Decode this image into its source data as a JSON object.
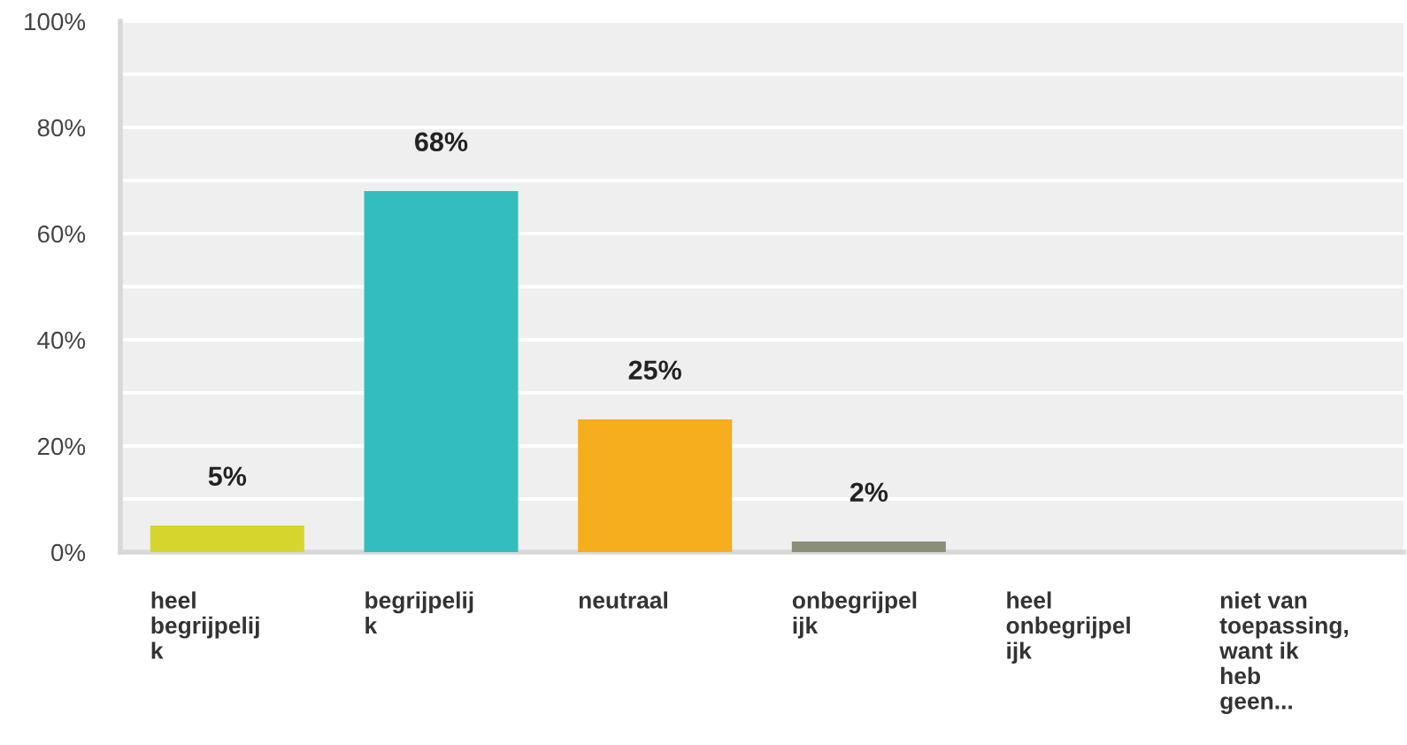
{
  "chart_data": {
    "type": "bar",
    "categories": [
      "heel\nbegrijpelij\nk",
      "begrijpelij\nk",
      "neutraal",
      "onbegrijpel\nijk",
      "heel\nonbegrijpel\nijk",
      "niet van\ntoepassing,\nwant ik\nheb\ngeen..."
    ],
    "values": [
      5,
      68,
      25,
      2,
      0,
      0
    ],
    "colors": [
      "#d4d62d",
      "#33bdbe",
      "#f6ae1f",
      "#8a9078",
      "#888888",
      "#888888"
    ],
    "value_labels": [
      "5%",
      "68%",
      "25%",
      "2%",
      null,
      null
    ],
    "ylim": [
      0,
      100
    ],
    "yticks": [
      {
        "value": 0,
        "label": "0%"
      },
      {
        "value": 10,
        "label": null
      },
      {
        "value": 20,
        "label": "20%"
      },
      {
        "value": 30,
        "label": null
      },
      {
        "value": 40,
        "label": "40%"
      },
      {
        "value": 50,
        "label": null
      },
      {
        "value": 60,
        "label": "60%"
      },
      {
        "value": 70,
        "label": null
      },
      {
        "value": 80,
        "label": "80%"
      },
      {
        "value": 90,
        "label": null
      },
      {
        "value": 100,
        "label": "100%"
      }
    ],
    "grid": "y"
  }
}
